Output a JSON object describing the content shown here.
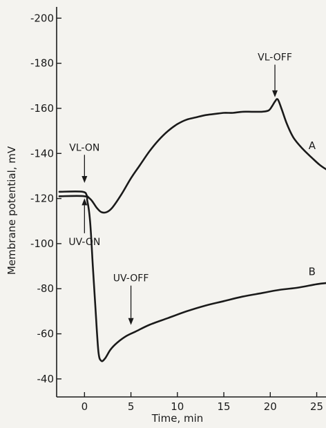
{
  "chart_data": {
    "type": "line",
    "title": "",
    "xlabel": "Time, min",
    "ylabel": "Membrane  potential, mV",
    "xlim": [
      -3,
      26
    ],
    "ylim": [
      -32,
      -205
    ],
    "y_axis_inverted": true,
    "grid": false,
    "x_ticks": [
      0,
      5,
      10,
      15,
      20,
      25
    ],
    "x_tick_labels": [
      "0",
      "5",
      "10",
      "15",
      "20",
      "25"
    ],
    "y_ticks": [
      -40,
      -60,
      -80,
      -100,
      -120,
      -140,
      -160,
      -180,
      -200
    ],
    "y_tick_labels": [
      "-40",
      "-60",
      "-80",
      "-100",
      "-120",
      "-140",
      "-160",
      "-180",
      "-200"
    ],
    "series": [
      {
        "name": "A",
        "x": [
          -2.7,
          -0.2,
          0.3,
          0.8,
          1.3,
          1.8,
          2.4,
          3.0,
          4.0,
          5.0,
          6.0,
          7.0,
          8.0,
          9.0,
          10.0,
          11.0,
          12.0,
          13.0,
          14.0,
          15.0,
          16.0,
          17.0,
          18.0,
          19.0,
          19.8,
          20.2,
          20.5,
          20.8,
          21.2,
          21.8,
          22.5,
          23.5,
          24.5,
          25.3,
          26.0
        ],
        "y": [
          -123,
          -123,
          -121,
          -119,
          -116,
          -114,
          -114,
          -116,
          -122,
          -129,
          -135,
          -141,
          -146,
          -150,
          -153,
          -155,
          -156,
          -157,
          -157.5,
          -158,
          -158,
          -158.5,
          -158.5,
          -158.5,
          -159,
          -161,
          -163,
          -164,
          -160,
          -153,
          -147,
          -142,
          -138,
          -135,
          -133
        ]
      },
      {
        "name": "B",
        "x": [
          -2.7,
          0.0,
          0.3,
          0.6,
          0.9,
          1.2,
          1.5,
          1.8,
          2.2,
          2.8,
          3.5,
          4.5,
          5.5,
          7.0,
          9.0,
          11.0,
          13.0,
          15.0,
          17.0,
          19.0,
          21.0,
          23.0,
          25.0,
          26.0
        ],
        "y": [
          -121,
          -121,
          -119,
          -110,
          -90,
          -70,
          -52,
          -48,
          -49,
          -53,
          -56,
          -59,
          -61,
          -64,
          -67,
          -70,
          -72.5,
          -74.5,
          -76.5,
          -78,
          -79.5,
          -80.5,
          -82,
          -82.5
        ]
      }
    ],
    "annotations": [
      {
        "text": "VL-ON",
        "x": 0,
        "y": -140,
        "arrow_to_y": -126
      },
      {
        "text": "VL-OFF",
        "x": 20.5,
        "y": -180,
        "arrow_to_y": -164
      },
      {
        "text": "UV-ON",
        "x": 0,
        "y": -104,
        "arrow_to_y": -121
      },
      {
        "text": "UV-OFF",
        "x": 5,
        "y": -82,
        "arrow_to_y": -63
      }
    ],
    "curve_labels": [
      {
        "text": "A",
        "x": 24.5,
        "y": -142
      },
      {
        "text": "B",
        "x": 24.5,
        "y": -86
      }
    ]
  }
}
